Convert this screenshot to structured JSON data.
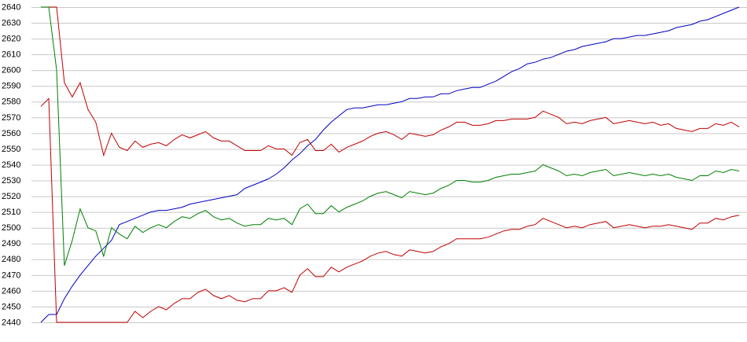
{
  "chart_data": {
    "type": "line",
    "ylim": [
      2440,
      2640
    ],
    "yticks": [
      2440,
      2450,
      2460,
      2470,
      2480,
      2490,
      2500,
      2510,
      2520,
      2530,
      2540,
      2550,
      2560,
      2570,
      2580,
      2590,
      2600,
      2610,
      2620,
      2630,
      2640
    ],
    "grid": true,
    "series": [
      {
        "color": "#0000c0",
        "values": [
          2440,
          2445,
          2445,
          2455,
          2463,
          2470,
          2476,
          2482,
          2487,
          2492,
          2502,
          2504,
          2506,
          2508,
          2510,
          2511,
          2511,
          2512,
          2513,
          2515,
          2516,
          2517,
          2518,
          2519,
          2520,
          2521,
          2525,
          2527,
          2529,
          2531,
          2534,
          2538,
          2543,
          2547,
          2552,
          2556,
          2562,
          2567,
          2571,
          2575,
          2576,
          2576,
          2577,
          2578,
          2578,
          2579,
          2580,
          2582,
          2582,
          2583,
          2583,
          2585,
          2585,
          2587,
          2588,
          2589,
          2589,
          2591,
          2593,
          2596,
          2599,
          2601,
          2604,
          2605,
          2607,
          2608,
          2610,
          2612,
          2613,
          2615,
          2616,
          2617,
          2618,
          2620,
          2620,
          2621,
          2622,
          2622,
          2623,
          2624,
          2625,
          2627,
          2628,
          2629,
          2631,
          2632,
          2634,
          2636,
          2638,
          2640
        ]
      },
      {
        "color": "#c00000",
        "values": [
          2640,
          2640,
          2640,
          2592,
          2583,
          2592,
          2575,
          2567,
          2546,
          2560,
          2551,
          2549,
          2555,
          2551,
          2553,
          2554,
          2552,
          2556,
          2559,
          2557,
          2559,
          2561,
          2557,
          2555,
          2555,
          2552,
          2549,
          2549,
          2549,
          2552,
          2550,
          2550,
          2546,
          2554,
          2556,
          2549,
          2549,
          2553,
          2548,
          2551,
          2553,
          2555,
          2558,
          2560,
          2561,
          2559,
          2556,
          2560,
          2559,
          2558,
          2559,
          2562,
          2564,
          2567,
          2567,
          2565,
          2565,
          2566,
          2568,
          2568,
          2569,
          2569,
          2569,
          2570,
          2574,
          2572,
          2570,
          2566,
          2567,
          2566,
          2568,
          2569,
          2570,
          2566,
          2567,
          2568,
          2567,
          2566,
          2567,
          2565,
          2566,
          2563,
          2562,
          2561,
          2563,
          2563,
          2566,
          2565,
          2567,
          2564
        ]
      },
      {
        "color": "#008000",
        "values": [
          2640,
          2640,
          2600,
          2476,
          2492,
          2512,
          2500,
          2498,
          2482,
          2500,
          2496,
          2493,
          2501,
          2497,
          2500,
          2502,
          2500,
          2504,
          2507,
          2506,
          2509,
          2511,
          2507,
          2505,
          2506,
          2503,
          2501,
          2502,
          2502,
          2506,
          2505,
          2506,
          2502,
          2512,
          2515,
          2509,
          2509,
          2514,
          2510,
          2513,
          2515,
          2517,
          2520,
          2522,
          2523,
          2521,
          2519,
          2523,
          2522,
          2521,
          2522,
          2525,
          2527,
          2530,
          2530,
          2529,
          2529,
          2530,
          2532,
          2533,
          2534,
          2534,
          2535,
          2536,
          2540,
          2538,
          2536,
          2533,
          2534,
          2533,
          2535,
          2536,
          2537,
          2533,
          2534,
          2535,
          2534,
          2533,
          2534,
          2533,
          2534,
          2532,
          2531,
          2530,
          2533,
          2533,
          2536,
          2535,
          2537,
          2536
        ]
      },
      {
        "color": "#c00000",
        "values": [
          2577,
          2582,
          2440,
          2440,
          2440,
          2440,
          2440,
          2440,
          2440,
          2440,
          2440,
          2440,
          2447,
          2443,
          2447,
          2450,
          2448,
          2452,
          2455,
          2455,
          2459,
          2461,
          2457,
          2455,
          2457,
          2454,
          2453,
          2455,
          2455,
          2460,
          2460,
          2462,
          2459,
          2470,
          2474,
          2469,
          2469,
          2475,
          2472,
          2475,
          2477,
          2479,
          2482,
          2484,
          2485,
          2483,
          2482,
          2486,
          2485,
          2484,
          2485,
          2488,
          2490,
          2493,
          2493,
          2493,
          2493,
          2494,
          2496,
          2498,
          2499,
          2499,
          2501,
          2502,
          2506,
          2504,
          2502,
          2500,
          2501,
          2500,
          2502,
          2503,
          2504,
          2500,
          2501,
          2502,
          2501,
          2500,
          2501,
          2501,
          2502,
          2501,
          2500,
          2499,
          2503,
          2503,
          2506,
          2505,
          2507,
          2508
        ]
      }
    ]
  }
}
